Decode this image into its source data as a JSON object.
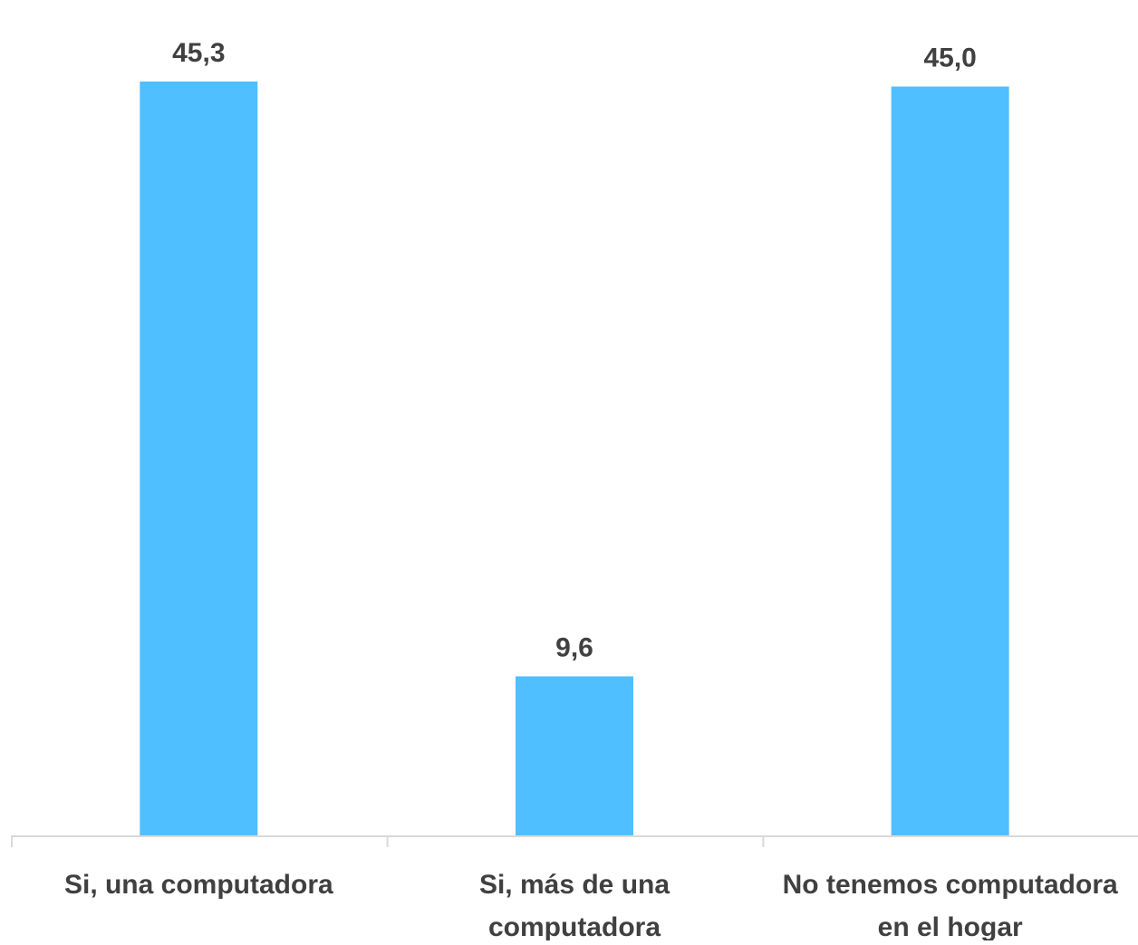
{
  "chart_data": {
    "type": "bar",
    "categories": [
      [
        "Si, una computadora"
      ],
      [
        "Si, más de una",
        "computadora"
      ],
      [
        "No tenemos computadora",
        "en el hogar"
      ]
    ],
    "values": [
      45.3,
      9.6,
      45.0
    ],
    "value_labels": [
      "45,3",
      "9,6",
      "45,0"
    ],
    "ylim": [
      0,
      45.3
    ],
    "grid": false,
    "legend": "none",
    "colors": {
      "bar": "#4FBFFF",
      "axis": "#D9D9D9",
      "label_text": "#404040"
    }
  }
}
